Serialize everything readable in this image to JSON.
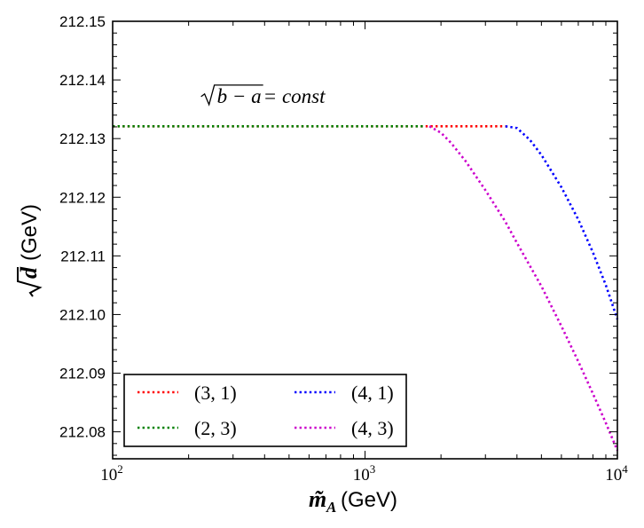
{
  "chart_data": {
    "type": "line",
    "x_scale": "log",
    "xlim": [
      100,
      10000
    ],
    "ylim": [
      212.0754,
      212.15
    ],
    "x_ticks": [
      {
        "value": 100,
        "base": "10",
        "exp": "2"
      },
      {
        "value": 1000,
        "base": "10",
        "exp": "3"
      },
      {
        "value": 10000,
        "base": "10",
        "exp": "4"
      }
    ],
    "y_ticks": [
      {
        "value": 212.08,
        "label": "212.08"
      },
      {
        "value": 212.09,
        "label": "212.09"
      },
      {
        "value": 212.1,
        "label": "212.10"
      },
      {
        "value": 212.11,
        "label": "212.11"
      },
      {
        "value": 212.12,
        "label": "212.12"
      },
      {
        "value": 212.13,
        "label": "212.13"
      },
      {
        "value": 212.14,
        "label": "212.14"
      },
      {
        "value": 212.15,
        "label": "212.15"
      }
    ],
    "xlabel_math": "m̃",
    "xlabel_sub": "A",
    "xlabel_unit": "(GeV)",
    "ylabel_math": "d",
    "ylabel_unit": "(GeV)",
    "annotation": {
      "radicand": "b − a",
      "rest": " = const",
      "x": 200,
      "y": 212.137
    },
    "series": [
      {
        "name": "(3, 1)",
        "color": "#ff0000",
        "x": [
          100,
          200,
          400,
          800,
          1400,
          1800,
          2500,
          3600
        ],
        "y": [
          212.1321,
          212.1321,
          212.1321,
          212.1321,
          212.1321,
          212.1321,
          212.1321,
          212.1321
        ]
      },
      {
        "name": "(2, 3)",
        "color": "#008000",
        "x": [
          100,
          200,
          400,
          800,
          1200,
          1700
        ],
        "y": [
          212.1321,
          212.1321,
          212.1321,
          212.1321,
          212.1321,
          212.1321
        ]
      },
      {
        "name": "(4, 1)",
        "color": "#0000ff",
        "x": [
          3600,
          4000,
          4500,
          5000,
          6000,
          7000,
          8000,
          9000,
          10000
        ],
        "y": [
          212.1321,
          212.1318,
          212.1298,
          212.1272,
          212.1217,
          212.1162,
          212.1106,
          212.105,
          212.0992
        ]
      },
      {
        "name": "(4, 3)",
        "color": "#cc00cc",
        "x": [
          1800,
          2000,
          2200,
          2500,
          3000,
          3600,
          4000,
          5000,
          6000,
          7000,
          8000,
          9000,
          10000
        ],
        "y": [
          212.1321,
          212.131,
          212.1292,
          212.1262,
          212.1212,
          212.1158,
          212.1122,
          212.1048,
          212.098,
          212.092,
          212.0865,
          212.0815,
          212.0768
        ]
      }
    ],
    "legend": {
      "placement": "lower-left",
      "columns": 2,
      "order": [
        "(3, 1)",
        "(2, 3)",
        "(4, 1)",
        "(4, 3)"
      ]
    }
  }
}
